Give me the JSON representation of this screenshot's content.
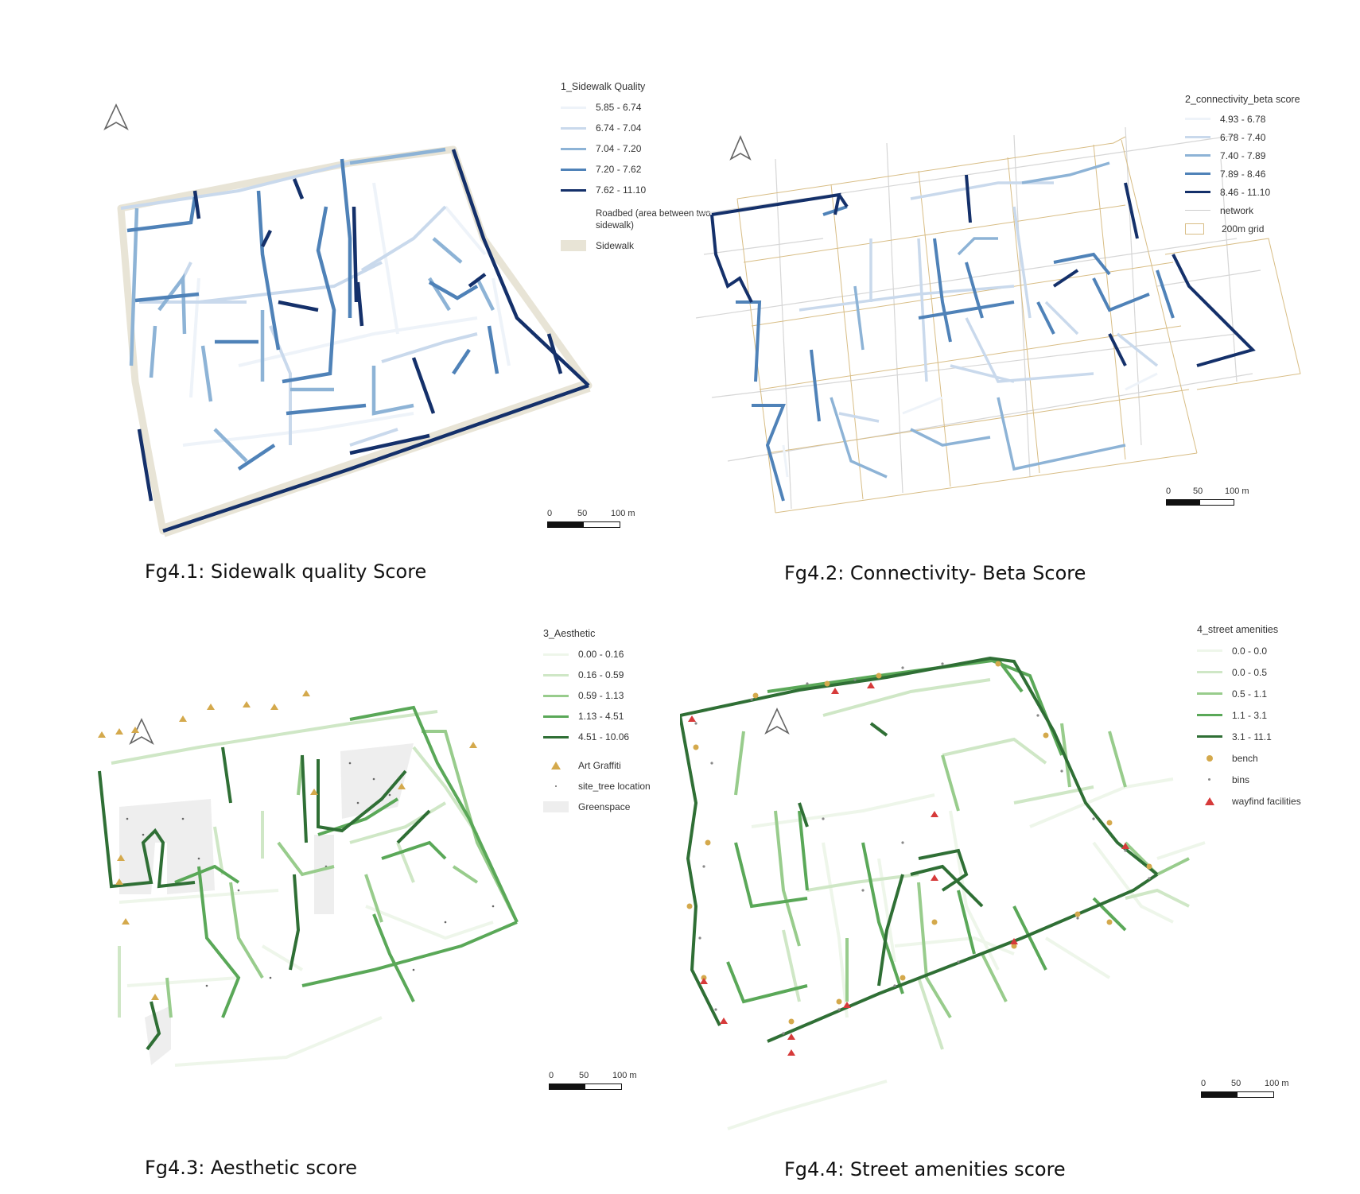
{
  "colors": {
    "blue_ramp": [
      "#eef3f9",
      "#c9d9ec",
      "#8db3d6",
      "#4f82b8",
      "#14306a"
    ],
    "green_ramp": [
      "#eef6ea",
      "#cfe7c6",
      "#98cc8c",
      "#5aa858",
      "#2f6f35"
    ],
    "sidewalk_fill": "#e8e4d6",
    "grid_line": "#d8bd85",
    "network_line": "#d6d6d6",
    "greenspace_fill": "#eeeeee",
    "graffiti": "#d4a94c",
    "bench": "#d4a94c",
    "bins": "#888888",
    "wayfind": "#d63a3a"
  },
  "panels": [
    {
      "id": "fg41",
      "caption": "Fg4.1: Sidewalk quality Score",
      "legend": {
        "title": "1_Sidewalk Quality",
        "classes": [
          "5.85 - 6.74",
          "6.74 - 7.04",
          "7.04 - 7.20",
          "7.20 - 7.62",
          "7.62 - 11.10"
        ],
        "extras": [
          "Roadbed (area between two sidewalk)",
          "Sidewalk"
        ]
      },
      "scale": {
        "ticks": [
          "0",
          "50",
          "100 m"
        ]
      },
      "north_icon": "north-arrow-icon"
    },
    {
      "id": "fg42",
      "caption": "Fg4.2: Connectivity- Beta Score",
      "legend": {
        "title": "2_connectivity_beta score",
        "classes": [
          "4.93 - 6.78",
          "6.78 - 7.40",
          "7.40 - 7.89",
          "7.89 - 8.46",
          "8.46 - 11.10"
        ],
        "extras": [
          "network",
          "200m grid"
        ]
      },
      "scale": {
        "ticks": [
          "0",
          "50",
          "100 m"
        ]
      },
      "north_icon": "north-arrow-icon"
    },
    {
      "id": "fg43",
      "caption": "Fg4.3: Aesthetic score",
      "legend": {
        "title": "3_Aesthetic",
        "classes": [
          "0.00 - 0.16",
          "0.16 - 0.59",
          "0.59 - 1.13",
          "1.13 - 4.51",
          "4.51 - 10.06"
        ],
        "extras": [
          "Art Graffiti",
          "site_tree location",
          "Greenspace"
        ]
      },
      "scale": {
        "ticks": [
          "0",
          "50",
          "100 m"
        ]
      },
      "north_icon": "north-arrow-icon"
    },
    {
      "id": "fg44",
      "caption": "Fg4.4: Street amenities score",
      "legend": {
        "title": "4_street amenities",
        "classes": [
          "0.0 - 0.0",
          "0.0 - 0.5",
          "0.5 - 1.1",
          "1.1 - 3.1",
          "3.1 - 11.1"
        ],
        "extras": [
          "bench",
          "bins",
          "wayfind facilities"
        ]
      },
      "scale": {
        "ticks": [
          "0",
          "50",
          "100 m"
        ]
      },
      "north_icon": "north-arrow-icon"
    }
  ]
}
